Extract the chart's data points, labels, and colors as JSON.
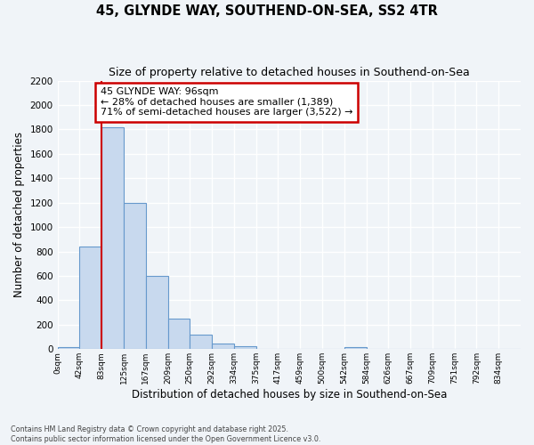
{
  "title": "45, GLYNDE WAY, SOUTHEND-ON-SEA, SS2 4TR",
  "subtitle": "Size of property relative to detached houses in Southend-on-Sea",
  "xlabel": "Distribution of detached houses by size in Southend-on-Sea",
  "ylabel": "Number of detached properties",
  "bin_labels": [
    "0sqm",
    "42sqm",
    "83sqm",
    "125sqm",
    "167sqm",
    "209sqm",
    "250sqm",
    "292sqm",
    "334sqm",
    "375sqm",
    "417sqm",
    "459sqm",
    "500sqm",
    "542sqm",
    "584sqm",
    "626sqm",
    "667sqm",
    "709sqm",
    "751sqm",
    "792sqm",
    "834sqm"
  ],
  "bar_values": [
    20,
    840,
    1820,
    1200,
    600,
    250,
    120,
    45,
    25,
    0,
    0,
    0,
    0,
    15,
    0,
    0,
    0,
    0,
    0,
    0,
    0
  ],
  "bar_color": "#c8d9ee",
  "bar_edge_color": "#6699cc",
  "property_line_label": "45 GLYNDE WAY: 96sqm",
  "annotation_line1": "← 28% of detached houses are smaller (1,389)",
  "annotation_line2": "71% of semi-detached houses are larger (3,522) →",
  "annotation_box_color": "#cc0000",
  "ylim": [
    0,
    2200
  ],
  "yticks": [
    0,
    200,
    400,
    600,
    800,
    1000,
    1200,
    1400,
    1600,
    1800,
    2000,
    2200
  ],
  "bg_color": "#f0f4f8",
  "plot_bg_color": "#f0f4f8",
  "grid_color": "#ffffff",
  "footer_line1": "Contains HM Land Registry data © Crown copyright and database right 2025.",
  "footer_line2": "Contains public sector information licensed under the Open Government Licence v3.0."
}
